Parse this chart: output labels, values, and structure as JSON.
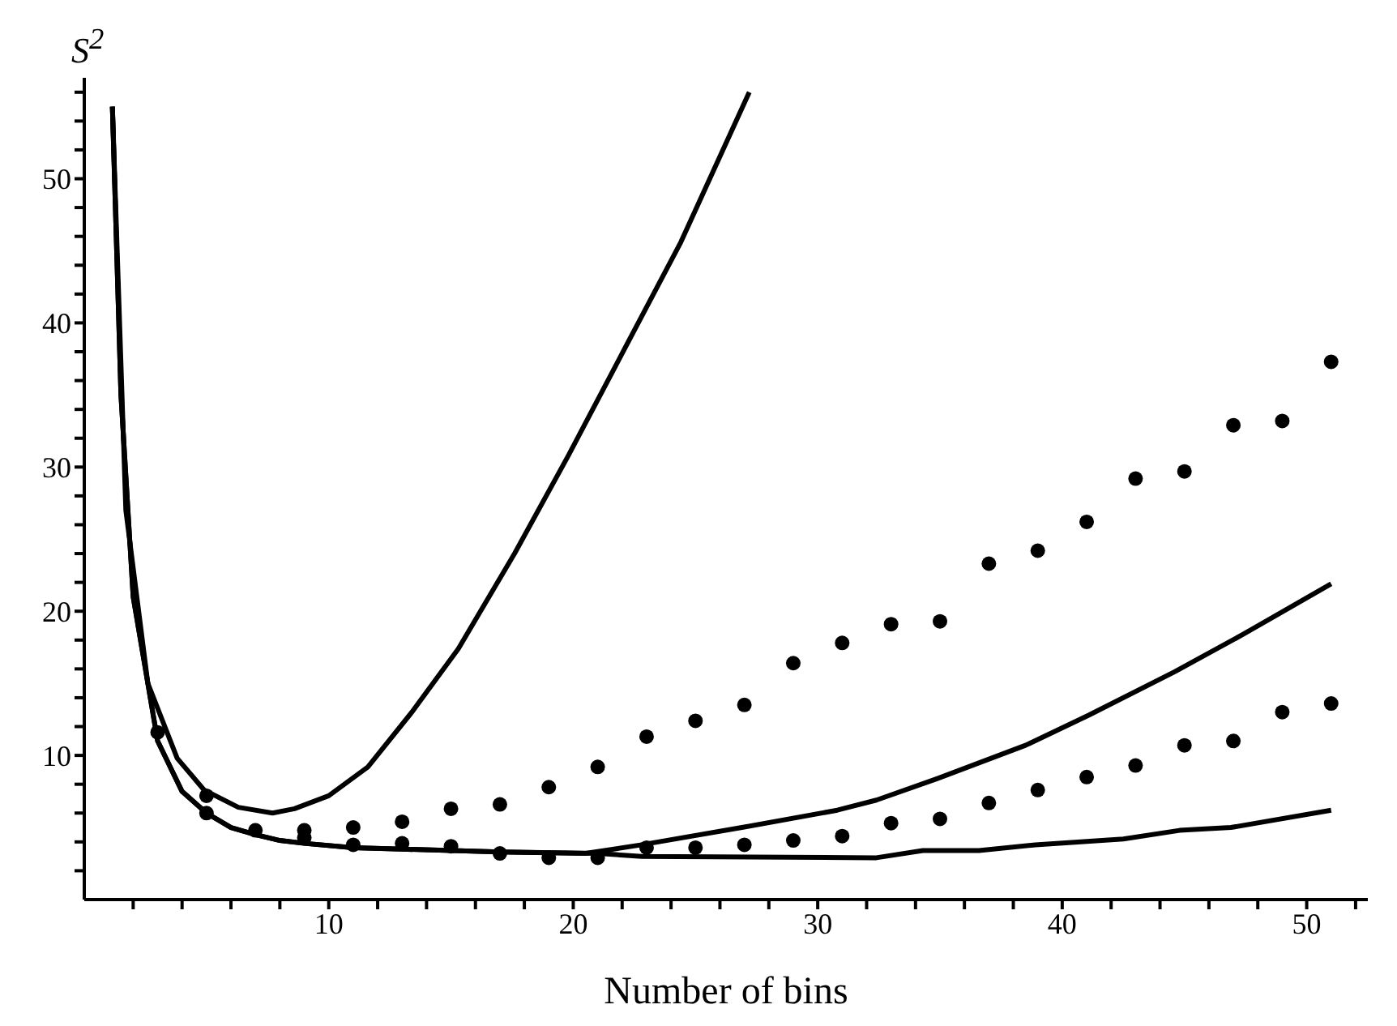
{
  "chart_data": {
    "type": "line",
    "xlabel": "Number of bins",
    "ylabel": "S$^{2}$",
    "xlim": [
      0,
      52.5
    ],
    "ylim": [
      0,
      57
    ],
    "xticks": [
      {
        "value": 2,
        "label": null
      },
      {
        "value": 4,
        "label": null
      },
      {
        "value": 6,
        "label": null
      },
      {
        "value": 8,
        "label": null
      },
      10,
      {
        "value": 12,
        "label": null
      },
      {
        "value": 14,
        "label": null
      },
      {
        "value": 16,
        "label": null
      },
      {
        "value": 18,
        "label": null
      },
      20,
      {
        "value": 22,
        "label": null
      },
      {
        "value": 24,
        "label": null
      },
      {
        "value": 26,
        "label": null
      },
      {
        "value": 28,
        "label": null
      },
      30,
      {
        "value": 32,
        "label": null
      },
      {
        "value": 34,
        "label": null
      },
      {
        "value": 36,
        "label": null
      },
      {
        "value": 38,
        "label": null
      },
      40,
      {
        "value": 42,
        "label": null
      },
      {
        "value": 44,
        "label": null
      },
      {
        "value": 46,
        "label": null
      },
      {
        "value": 48,
        "label": null
      },
      50,
      {
        "value": 52,
        "label": null
      }
    ],
    "yticks": [
      {
        "value": 2,
        "label": null
      },
      {
        "value": 4,
        "label": null
      },
      {
        "value": 6,
        "label": null
      },
      {
        "value": 8,
        "label": null
      },
      10,
      {
        "value": 12,
        "label": null
      },
      {
        "value": 14,
        "label": null
      },
      {
        "value": 16,
        "label": null
      },
      {
        "value": 18,
        "label": null
      },
      20,
      {
        "value": 22,
        "label": null
      },
      {
        "value": 24,
        "label": null
      },
      {
        "value": 26,
        "label": null
      },
      {
        "value": 28,
        "label": null
      },
      30,
      {
        "value": 32,
        "label": null
      },
      {
        "value": 34,
        "label": null
      },
      {
        "value": 36,
        "label": null
      },
      {
        "value": 38,
        "label": null
      },
      40,
      {
        "value": 42,
        "label": null
      },
      {
        "value": 44,
        "label": null
      },
      {
        "value": 46,
        "label": null
      },
      {
        "value": 48,
        "label": null
      },
      50,
      {
        "value": 52,
        "label": null
      },
      {
        "value": 54,
        "label": null
      },
      {
        "value": 56,
        "label": null
      }
    ],
    "series": [
      {
        "type": "line",
        "color": "#000000",
        "x": [
          1.15,
          1.7,
          2.6,
          3.8,
          4.9,
          6.3,
          7.7,
          8.6,
          10,
          11.6,
          13.4,
          15.3,
          17.6,
          19.8,
          22.1,
          24.4,
          27.2
        ],
        "values": [
          55,
          27,
          15,
          9.8,
          7.6,
          6.4,
          6,
          6.3,
          7.2,
          9.2,
          13,
          17.4,
          24,
          30.8,
          38.2,
          45.6,
          56
        ]
      },
      {
        "type": "line",
        "color": "#000000",
        "x": [
          1.15,
          1.5,
          2,
          3,
          4,
          5,
          6,
          7,
          8,
          9,
          11,
          13,
          17,
          20.5,
          22.8,
          26.9,
          30.8,
          32.4,
          34.9,
          38.5,
          41.1,
          44.6,
          47.4,
          51
        ],
        "values": [
          55,
          35,
          21,
          11,
          7.5,
          6,
          5,
          4.5,
          4.1,
          3.9,
          3.6,
          3.5,
          3.3,
          3.2,
          3.8,
          5,
          6.2,
          6.9,
          8.4,
          10.7,
          12.8,
          15.8,
          18.4,
          21.9
        ]
      },
      {
        "type": "line",
        "color": "#000000",
        "x": [
          1.15,
          1.5,
          2,
          3,
          4,
          5,
          6,
          7,
          8,
          9,
          11,
          13,
          17,
          21,
          22.8,
          32.4,
          34.3,
          36.6,
          38.9,
          42.5,
          44.8,
          46.9,
          51
        ],
        "values": [
          55,
          35,
          21,
          11,
          7.5,
          6,
          5,
          4.5,
          4.1,
          3.9,
          3.6,
          3.5,
          3.3,
          3.2,
          3,
          2.9,
          3.4,
          3.4,
          3.8,
          4.2,
          4.8,
          5,
          6.2
        ]
      },
      {
        "type": "scatter",
        "marker": "circle",
        "color": "#000000",
        "x": [
          5,
          9,
          11,
          13,
          15,
          17,
          19,
          21,
          23,
          25,
          27,
          29,
          31,
          33,
          35,
          37,
          39,
          41,
          43,
          45,
          47,
          49,
          51
        ],
        "values": [
          7.2,
          4.8,
          5,
          5.4,
          6.3,
          6.6,
          7.8,
          9.2,
          11.3,
          12.4,
          13.5,
          16.4,
          17.8,
          19.1,
          19.3,
          23.3,
          24.2,
          26.2,
          29.2,
          29.7,
          32.9,
          33.2,
          37.3
        ]
      },
      {
        "type": "scatter",
        "marker": "circle",
        "color": "#000000",
        "x": [
          3,
          5,
          7,
          9,
          11,
          13,
          15,
          17,
          19,
          21,
          23,
          25,
          27,
          29,
          31,
          33,
          35,
          37,
          39,
          41,
          43,
          45,
          47,
          49,
          51
        ],
        "values": [
          11.6,
          6,
          4.8,
          4.3,
          3.8,
          3.9,
          3.7,
          3.2,
          2.9,
          2.9,
          3.6,
          3.6,
          3.8,
          4.1,
          4.4,
          5.3,
          5.6,
          6.7,
          7.6,
          8.5,
          9.3,
          10.7,
          11,
          13,
          13.6
        ]
      }
    ]
  }
}
